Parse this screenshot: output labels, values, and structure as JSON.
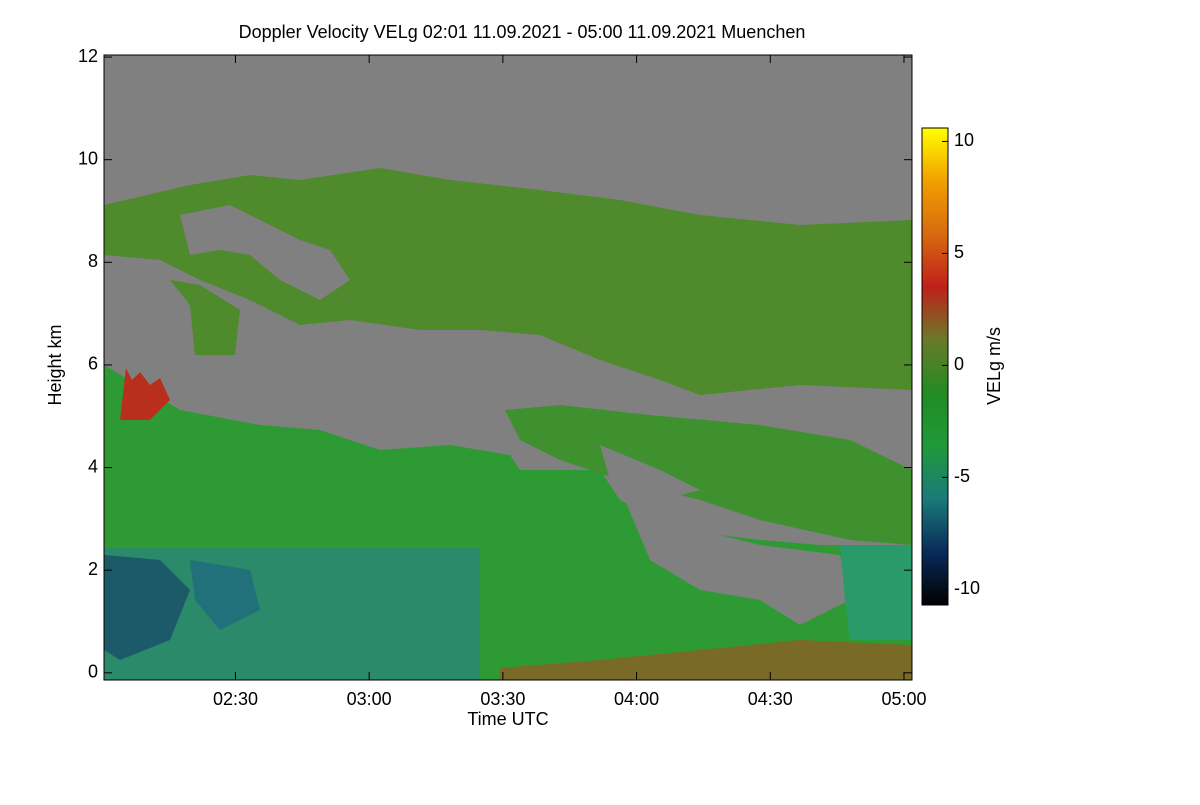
{
  "chart_data": {
    "type": "heatmap",
    "title": "Doppler Velocity VELg   02:01 11.09.2021 - 05:00 11.09.2021 Muenchen",
    "x_label": "Time UTC",
    "y_label": "Height km",
    "xlim": [
      120.5,
      301.8
    ],
    "xticks": [
      {
        "value": 150,
        "label": "02:30"
      },
      {
        "value": 180,
        "label": "03:00"
      },
      {
        "value": 210,
        "label": "03:30"
      },
      {
        "value": 240,
        "label": "04:00"
      },
      {
        "value": 270,
        "label": "04:30"
      },
      {
        "value": 300,
        "label": "05:00"
      }
    ],
    "ylim": [
      -0.14,
      12.04
    ],
    "yticks": [
      0,
      2,
      4,
      6,
      8,
      10,
      12
    ],
    "colorbar": {
      "label": "VELg m/s",
      "lim": [
        -10.7,
        10.6
      ],
      "ticks": [
        -10,
        -5,
        0,
        5,
        10
      ],
      "colors": [
        "#000000",
        "#0a2a5a",
        "#1a7a7a",
        "#1f9a3a",
        "#228b22",
        "#6a7a2a",
        "#c0201a",
        "#d86a10",
        "#f0a000",
        "#ffff00"
      ]
    }
  }
}
